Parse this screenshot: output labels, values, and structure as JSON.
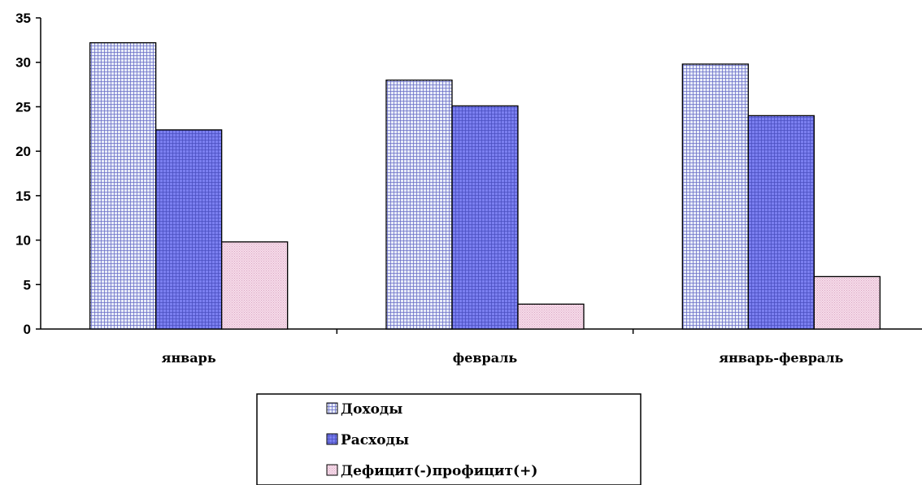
{
  "chart_data": {
    "type": "bar",
    "title": "",
    "xlabel": "",
    "ylabel": "",
    "ylim": [
      0,
      35
    ],
    "yticks": [
      0,
      5,
      10,
      15,
      20,
      25,
      30,
      35
    ],
    "grid": false,
    "legend_position": "bottom",
    "categories": [
      "январь",
      "февраль",
      "январь-февраль"
    ],
    "series": [
      {
        "name": "Доходы",
        "values": [
          32.2,
          28.0,
          29.8
        ],
        "color": "#e8ecf8",
        "pattern": "grid",
        "pattern_color": "#6a6fc8"
      },
      {
        "name": "Расходы",
        "values": [
          22.4,
          25.1,
          24.0
        ],
        "color": "#7b7ff0",
        "pattern": "grid",
        "pattern_color": "#4a4fc0"
      },
      {
        "name": "Дефицит(-)профицит(+)",
        "values": [
          9.8,
          2.8,
          5.9
        ],
        "color": "#f6dbe9",
        "pattern": "dots",
        "pattern_color": "#d9a8c4"
      }
    ]
  }
}
